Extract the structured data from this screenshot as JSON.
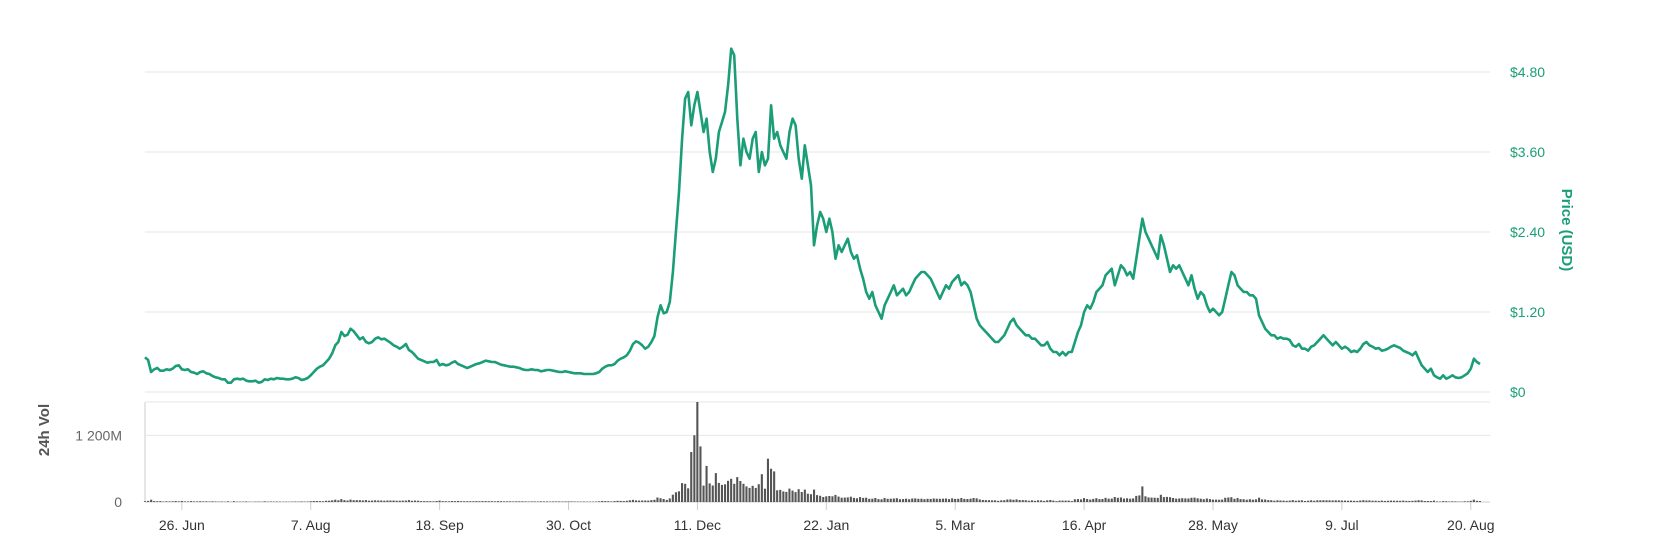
{
  "chart_data": [
    {
      "type": "line",
      "name": "price",
      "ylabel": "Price (USD)",
      "ylim": [
        0,
        4.8
      ],
      "y_ticks": [
        "$0",
        "$1.20",
        "$2.40",
        "$3.60",
        "$4.80"
      ],
      "y_tick_values": [
        0,
        1.2,
        2.4,
        3.6,
        4.8
      ],
      "x_ticks": [
        "26. Jun",
        "7. Aug",
        "18. Sep",
        "30. Oct",
        "11. Dec",
        "22. Jan",
        "5. Mar",
        "16. Apr",
        "28. May",
        "9. Jul",
        "20. Aug"
      ],
      "x_tick_day_index": [
        12,
        54,
        96,
        138,
        180,
        222,
        264,
        306,
        348,
        390,
        432
      ],
      "line_color": "#1b9e77",
      "grid": true,
      "series": [
        {
          "values": [
            0.52,
            0.48,
            0.3,
            0.34,
            0.36,
            0.32,
            0.32,
            0.34,
            0.33,
            0.35,
            0.39,
            0.4,
            0.34,
            0.33,
            0.34,
            0.3,
            0.29,
            0.27,
            0.3,
            0.31,
            0.28,
            0.27,
            0.24,
            0.22,
            0.21,
            0.19,
            0.19,
            0.14,
            0.14,
            0.19,
            0.2,
            0.19,
            0.2,
            0.17,
            0.16,
            0.16,
            0.17,
            0.14,
            0.15,
            0.19,
            0.18,
            0.2,
            0.19,
            0.21,
            0.2,
            0.2,
            0.19,
            0.19,
            0.2,
            0.22,
            0.21,
            0.18,
            0.19,
            0.21,
            0.25,
            0.3,
            0.35,
            0.38,
            0.4,
            0.45,
            0.5,
            0.58,
            0.7,
            0.75,
            0.9,
            0.84,
            0.86,
            0.95,
            0.91,
            0.85,
            0.79,
            0.82,
            0.75,
            0.73,
            0.75,
            0.8,
            0.82,
            0.79,
            0.8,
            0.77,
            0.74,
            0.7,
            0.68,
            0.65,
            0.68,
            0.72,
            0.63,
            0.6,
            0.55,
            0.5,
            0.48,
            0.46,
            0.44,
            0.45,
            0.45,
            0.48,
            0.4,
            0.42,
            0.4,
            0.41,
            0.44,
            0.46,
            0.42,
            0.4,
            0.38,
            0.36,
            0.38,
            0.4,
            0.42,
            0.43,
            0.45,
            0.47,
            0.46,
            0.45,
            0.45,
            0.43,
            0.41,
            0.4,
            0.39,
            0.38,
            0.38,
            0.37,
            0.36,
            0.34,
            0.33,
            0.33,
            0.34,
            0.33,
            0.33,
            0.31,
            0.32,
            0.33,
            0.33,
            0.32,
            0.31,
            0.3,
            0.3,
            0.31,
            0.3,
            0.29,
            0.28,
            0.28,
            0.28,
            0.27,
            0.27,
            0.27,
            0.27,
            0.28,
            0.3,
            0.35,
            0.38,
            0.4,
            0.4,
            0.42,
            0.47,
            0.5,
            0.52,
            0.55,
            0.62,
            0.72,
            0.76,
            0.74,
            0.7,
            0.65,
            0.68,
            0.75,
            0.84,
            1.12,
            1.3,
            1.18,
            1.2,
            1.35,
            1.8,
            2.4,
            3.0,
            3.8,
            4.4,
            4.5,
            4.0,
            4.3,
            4.5,
            4.2,
            3.9,
            4.1,
            3.6,
            3.3,
            3.5,
            3.9,
            4.05,
            4.2,
            4.6,
            5.15,
            5.05,
            4.1,
            3.4,
            3.8,
            3.6,
            3.5,
            3.8,
            3.9,
            3.3,
            3.6,
            3.4,
            3.5,
            4.3,
            3.8,
            3.9,
            3.7,
            3.6,
            3.5,
            3.9,
            4.1,
            4.0,
            3.5,
            3.2,
            3.7,
            3.4,
            3.1,
            2.2,
            2.5,
            2.7,
            2.6,
            2.4,
            2.6,
            2.4,
            2.0,
            2.2,
            2.1,
            2.2,
            2.3,
            2.1,
            2.0,
            2.05,
            1.85,
            1.7,
            1.5,
            1.4,
            1.5,
            1.3,
            1.2,
            1.1,
            1.3,
            1.4,
            1.5,
            1.6,
            1.45,
            1.5,
            1.55,
            1.45,
            1.5,
            1.6,
            1.7,
            1.75,
            1.8,
            1.8,
            1.75,
            1.7,
            1.6,
            1.5,
            1.4,
            1.5,
            1.6,
            1.55,
            1.65,
            1.7,
            1.75,
            1.6,
            1.65,
            1.6,
            1.5,
            1.3,
            1.1,
            1.0,
            0.95,
            0.9,
            0.85,
            0.8,
            0.75,
            0.75,
            0.8,
            0.85,
            0.95,
            1.05,
            1.1,
            1.0,
            0.95,
            0.9,
            0.85,
            0.85,
            0.8,
            0.8,
            0.75,
            0.7,
            0.7,
            0.75,
            0.65,
            0.6,
            0.6,
            0.55,
            0.6,
            0.55,
            0.6,
            0.6,
            0.75,
            0.9,
            1.0,
            1.2,
            1.3,
            1.25,
            1.35,
            1.5,
            1.55,
            1.6,
            1.75,
            1.8,
            1.85,
            1.6,
            1.75,
            1.9,
            1.85,
            1.75,
            1.8,
            1.7,
            2.0,
            2.3,
            2.6,
            2.4,
            2.3,
            2.2,
            2.1,
            2.0,
            2.35,
            2.2,
            2.0,
            1.8,
            1.9,
            1.85,
            1.9,
            1.8,
            1.7,
            1.6,
            1.75,
            1.55,
            1.4,
            1.5,
            1.45,
            1.3,
            1.2,
            1.25,
            1.2,
            1.15,
            1.2,
            1.4,
            1.6,
            1.8,
            1.75,
            1.6,
            1.55,
            1.5,
            1.5,
            1.45,
            1.45,
            1.4,
            1.15,
            1.05,
            0.95,
            0.9,
            0.85,
            0.85,
            0.8,
            0.82,
            0.8,
            0.8,
            0.78,
            0.7,
            0.68,
            0.72,
            0.65,
            0.65,
            0.62,
            0.68,
            0.7,
            0.75,
            0.8,
            0.85,
            0.8,
            0.75,
            0.7,
            0.75,
            0.7,
            0.65,
            0.68,
            0.65,
            0.6,
            0.62,
            0.6,
            0.65,
            0.72,
            0.75,
            0.7,
            0.68,
            0.65,
            0.66,
            0.62,
            0.63,
            0.65,
            0.68,
            0.7,
            0.68,
            0.66,
            0.62,
            0.6,
            0.58,
            0.55,
            0.6,
            0.5,
            0.4,
            0.35,
            0.3,
            0.35,
            0.25,
            0.22,
            0.2,
            0.25,
            0.2,
            0.22,
            0.25,
            0.22,
            0.21,
            0.22,
            0.25,
            0.28,
            0.35,
            0.5,
            0.45,
            0.42
          ]
        }
      ]
    },
    {
      "type": "bar",
      "name": "volume",
      "ylabel": "24h Vol",
      "ylim": [
        0,
        1800000000
      ],
      "y_ticks": [
        "0",
        "1 200M"
      ],
      "y_tick_values": [
        0,
        1200000000
      ],
      "bar_color": "#555555",
      "grid": true,
      "spikes": [
        {
          "day": 180,
          "value": 1800000000
        },
        {
          "day": 179,
          "value": 1200000000
        },
        {
          "day": 181,
          "value": 1000000000
        },
        {
          "day": 178,
          "value": 900000000
        },
        {
          "day": 183,
          "value": 650000000
        },
        {
          "day": 203,
          "value": 780000000
        },
        {
          "day": 204,
          "value": 600000000
        },
        {
          "day": 205,
          "value": 550000000
        },
        {
          "day": 201,
          "value": 500000000
        },
        {
          "day": 186,
          "value": 520000000
        },
        {
          "day": 325,
          "value": 280000000
        }
      ]
    }
  ]
}
